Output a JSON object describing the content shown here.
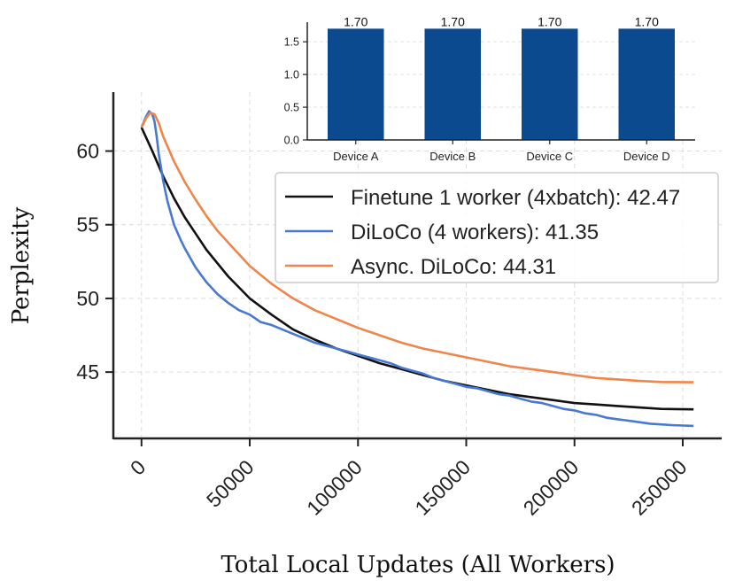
{
  "chart_data": [
    {
      "type": "line",
      "title": "",
      "xlabel": "Total Local Updates (All Workers)",
      "ylabel": "Perplexity",
      "xlim": [
        -13000,
        268000
      ],
      "ylim": [
        40.5,
        64
      ],
      "xticks": [
        0,
        50000,
        100000,
        150000,
        200000,
        250000
      ],
      "xtick_labels": [
        "0",
        "50000",
        "100000",
        "150000",
        "200000",
        "250000"
      ],
      "yticks": [
        45,
        50,
        55,
        60
      ],
      "ytick_labels": [
        "45",
        "50",
        "55",
        "60"
      ],
      "grid": true,
      "legend": "center-right",
      "series": [
        {
          "name": "Finetune 1 worker (4xbatch): 42.47",
          "color": "#111111",
          "x": [
            0,
            5000,
            10000,
            15000,
            20000,
            25000,
            30000,
            40000,
            50000,
            60000,
            70000,
            80000,
            90000,
            100000,
            110000,
            120000,
            130000,
            140000,
            150000,
            160000,
            170000,
            180000,
            190000,
            200000,
            210000,
            220000,
            230000,
            240000,
            255000
          ],
          "y": [
            61.6,
            60.0,
            58.3,
            56.8,
            55.5,
            54.4,
            53.3,
            51.5,
            50.0,
            48.9,
            47.9,
            47.2,
            46.6,
            46.1,
            45.6,
            45.2,
            44.8,
            44.4,
            44.1,
            43.8,
            43.5,
            43.3,
            43.1,
            42.9,
            42.8,
            42.7,
            42.6,
            42.5,
            42.47
          ]
        },
        {
          "name": "DiLoCo (4 workers): 41.35",
          "color": "#4878d0",
          "x": [
            0,
            2000,
            3500,
            5000,
            6000,
            7000,
            8000,
            10000,
            12000,
            15000,
            18000,
            20000,
            25000,
            30000,
            35000,
            40000,
            45000,
            50000,
            55000,
            60000,
            65000,
            70000,
            75000,
            80000,
            85000,
            90000,
            95000,
            100000,
            105000,
            110000,
            115000,
            120000,
            125000,
            130000,
            135000,
            140000,
            145000,
            150000,
            155000,
            160000,
            165000,
            170000,
            175000,
            180000,
            185000,
            190000,
            195000,
            200000,
            205000,
            210000,
            215000,
            220000,
            225000,
            230000,
            235000,
            240000,
            245000,
            255000
          ],
          "y": [
            61.6,
            62.3,
            62.7,
            62.5,
            62.0,
            61.0,
            59.8,
            58.0,
            56.6,
            55.0,
            54.0,
            53.4,
            52.1,
            51.1,
            50.3,
            49.7,
            49.2,
            48.9,
            48.4,
            48.2,
            47.9,
            47.6,
            47.3,
            47.0,
            46.8,
            46.6,
            46.4,
            46.2,
            46.0,
            45.8,
            45.6,
            45.3,
            45.1,
            44.9,
            44.6,
            44.4,
            44.2,
            44.0,
            43.9,
            43.7,
            43.5,
            43.4,
            43.2,
            43.0,
            42.9,
            42.7,
            42.5,
            42.4,
            42.2,
            42.1,
            41.9,
            41.8,
            41.7,
            41.6,
            41.5,
            41.45,
            41.4,
            41.35
          ]
        },
        {
          "name": "Async. DiLoCo: 44.31",
          "color": "#ee854a",
          "x": [
            0,
            2000,
            4000,
            6000,
            8000,
            10000,
            15000,
            20000,
            25000,
            30000,
            35000,
            40000,
            50000,
            60000,
            70000,
            80000,
            90000,
            100000,
            110000,
            120000,
            130000,
            140000,
            150000,
            160000,
            170000,
            180000,
            190000,
            200000,
            210000,
            220000,
            230000,
            240000,
            255000
          ],
          "y": [
            61.6,
            62.2,
            62.6,
            62.5,
            61.9,
            61.0,
            59.3,
            57.9,
            56.7,
            55.6,
            54.6,
            53.8,
            52.2,
            51.0,
            50.0,
            49.2,
            48.6,
            48.0,
            47.5,
            47.0,
            46.6,
            46.3,
            46.0,
            45.7,
            45.4,
            45.2,
            45.0,
            44.8,
            44.6,
            44.5,
            44.4,
            44.33,
            44.31
          ]
        }
      ]
    },
    {
      "type": "bar",
      "title": "",
      "xlabel": "",
      "ylabel": "",
      "categories": [
        "Device A",
        "Device B",
        "Device C",
        "Device D"
      ],
      "values": [
        1.7,
        1.7,
        1.7,
        1.7
      ],
      "value_labels": [
        "1.70",
        "1.70",
        "1.70",
        "1.70"
      ],
      "ylim": [
        0,
        1.8
      ],
      "yticks": [
        0.0,
        0.5,
        1.0,
        1.5
      ],
      "ytick_labels": [
        "0.0",
        "0.5",
        "1.0",
        "1.5"
      ],
      "color": "#0b4a8f",
      "grid": true
    }
  ]
}
